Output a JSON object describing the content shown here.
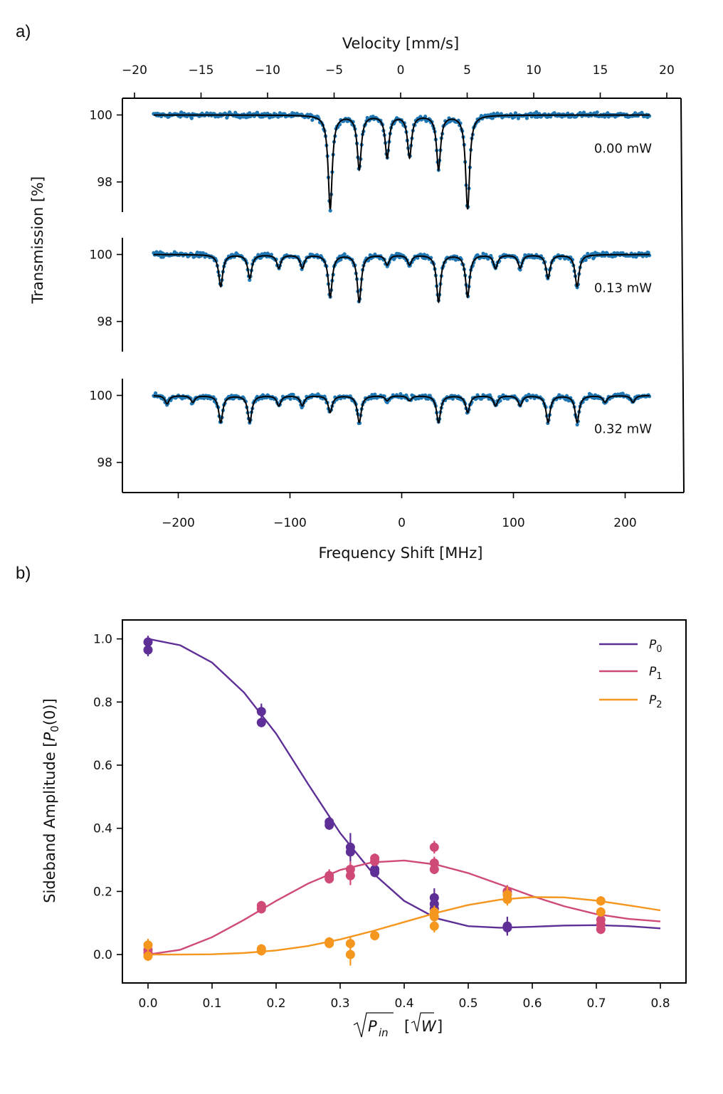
{
  "chart_data": [
    {
      "panel_label": "a)",
      "type": "scatter",
      "title": "",
      "top_axis": {
        "label": "Velocity [mm/s]",
        "ticks": [
          "−20",
          "−15",
          "−10",
          "−5",
          "0",
          "5",
          "10",
          "15",
          "20"
        ]
      },
      "x_axis": {
        "label": "Frequency Shift [MHz]",
        "ticks": [
          "−200",
          "−100",
          "0",
          "100",
          "200"
        ],
        "xlim": [
          -250,
          250
        ]
      },
      "y_axis": {
        "label": "Transmission [%]",
        "ticks": [
          "100",
          "98"
        ],
        "ylim": [
          97.1,
          100.5
        ]
      },
      "data_color": "#1f77b4",
      "fit_color": "#000000",
      "series": [
        {
          "name": "0.00 mW",
          "dips": [
            {
              "freq": -64,
              "depth": 2.8
            },
            {
              "freq": -38,
              "depth": 1.6
            },
            {
              "freq": -13,
              "depth": 1.25
            },
            {
              "freq": 7,
              "depth": 1.25
            },
            {
              "freq": 33,
              "depth": 1.6
            },
            {
              "freq": 59,
              "depth": 2.8
            }
          ]
        },
        {
          "name": "0.13 mW",
          "dips": [
            {
              "freq": -162,
              "depth": 0.95
            },
            {
              "freq": -136,
              "depth": 0.7
            },
            {
              "freq": -110,
              "depth": 0.4
            },
            {
              "freq": -89,
              "depth": 0.4
            },
            {
              "freq": -64,
              "depth": 1.25
            },
            {
              "freq": -38,
              "depth": 1.4
            },
            {
              "freq": -13,
              "depth": 0.3
            },
            {
              "freq": 7,
              "depth": 0.3
            },
            {
              "freq": 33,
              "depth": 1.4
            },
            {
              "freq": 59,
              "depth": 1.25
            },
            {
              "freq": 84,
              "depth": 0.4
            },
            {
              "freq": 106,
              "depth": 0.4
            },
            {
              "freq": 131,
              "depth": 0.7
            },
            {
              "freq": 157,
              "depth": 0.95
            }
          ]
        },
        {
          "name": "0.32 mW",
          "dips": [
            {
              "freq": -210,
              "depth": 0.25
            },
            {
              "freq": -187,
              "depth": 0.2
            },
            {
              "freq": -162,
              "depth": 0.8
            },
            {
              "freq": -136,
              "depth": 0.8
            },
            {
              "freq": -110,
              "depth": 0.3
            },
            {
              "freq": -89,
              "depth": 0.3
            },
            {
              "freq": -64,
              "depth": 0.5
            },
            {
              "freq": -38,
              "depth": 0.8
            },
            {
              "freq": -13,
              "depth": 0.15
            },
            {
              "freq": 7,
              "depth": 0.15
            },
            {
              "freq": 33,
              "depth": 0.8
            },
            {
              "freq": 59,
              "depth": 0.5
            },
            {
              "freq": 84,
              "depth": 0.3
            },
            {
              "freq": 106,
              "depth": 0.3
            },
            {
              "freq": 131,
              "depth": 0.8
            },
            {
              "freq": 157,
              "depth": 0.8
            },
            {
              "freq": 182,
              "depth": 0.2
            },
            {
              "freq": 207,
              "depth": 0.2
            }
          ]
        }
      ]
    },
    {
      "panel_label": "b)",
      "type": "scatter",
      "title": "",
      "xlabel": "√P_in [√W]",
      "ylabel": "Sideband Amplitude [P0(0)]",
      "xlim": [
        -0.04,
        0.84
      ],
      "ylim": [
        -0.09,
        1.06
      ],
      "x_ticks": [
        "0.0",
        "0.1",
        "0.2",
        "0.3",
        "0.4",
        "0.5",
        "0.6",
        "0.7",
        "0.8"
      ],
      "y_ticks": [
        "0.0",
        "0.2",
        "0.4",
        "0.6",
        "0.8",
        "1.0"
      ],
      "legend": {
        "position": "top-right",
        "entries": [
          "P0",
          "P1",
          "P2"
        ]
      },
      "series": [
        {
          "name": "P0",
          "color": "#5e2f96",
          "points": [
            {
              "x": 0.0,
              "y": 0.99,
              "err": 0.02
            },
            {
              "x": 0.0,
              "y": 0.965,
              "err": 0.02
            },
            {
              "x": 0.177,
              "y": 0.77,
              "err": 0.025
            },
            {
              "x": 0.177,
              "y": 0.735,
              "err": 0.015
            },
            {
              "x": 0.283,
              "y": 0.42,
              "err": 0.02
            },
            {
              "x": 0.283,
              "y": 0.41,
              "err": 0.015
            },
            {
              "x": 0.316,
              "y": 0.34,
              "err": 0.045
            },
            {
              "x": 0.316,
              "y": 0.325,
              "err": 0.02
            },
            {
              "x": 0.354,
              "y": 0.27,
              "err": 0.02
            },
            {
              "x": 0.354,
              "y": 0.26,
              "err": 0.015
            },
            {
              "x": 0.447,
              "y": 0.18,
              "err": 0.03
            },
            {
              "x": 0.447,
              "y": 0.16,
              "err": 0.03
            },
            {
              "x": 0.447,
              "y": 0.145,
              "err": 0.02
            },
            {
              "x": 0.561,
              "y": 0.09,
              "err": 0.03
            },
            {
              "x": 0.561,
              "y": 0.085,
              "err": 0.02
            }
          ],
          "fit": [
            {
              "x": 0.0,
              "y": 1.0
            },
            {
              "x": 0.05,
              "y": 0.98
            },
            {
              "x": 0.1,
              "y": 0.925
            },
            {
              "x": 0.15,
              "y": 0.83
            },
            {
              "x": 0.2,
              "y": 0.7
            },
            {
              "x": 0.25,
              "y": 0.54
            },
            {
              "x": 0.3,
              "y": 0.385
            },
            {
              "x": 0.35,
              "y": 0.26
            },
            {
              "x": 0.4,
              "y": 0.17
            },
            {
              "x": 0.45,
              "y": 0.115
            },
            {
              "x": 0.5,
              "y": 0.09
            },
            {
              "x": 0.55,
              "y": 0.085
            },
            {
              "x": 0.6,
              "y": 0.088
            },
            {
              "x": 0.65,
              "y": 0.092
            },
            {
              "x": 0.7,
              "y": 0.093
            },
            {
              "x": 0.75,
              "y": 0.09
            },
            {
              "x": 0.8,
              "y": 0.083
            }
          ]
        },
        {
          "name": "P1",
          "color": "#d04a78",
          "points": [
            {
              "x": 0.0,
              "y": 0.015,
              "err": 0.02
            },
            {
              "x": 0.0,
              "y": 0.005,
              "err": 0.015
            },
            {
              "x": 0.177,
              "y": 0.155,
              "err": 0.015
            },
            {
              "x": 0.177,
              "y": 0.145,
              "err": 0.015
            },
            {
              "x": 0.283,
              "y": 0.25,
              "err": 0.02
            },
            {
              "x": 0.283,
              "y": 0.24,
              "err": 0.015
            },
            {
              "x": 0.316,
              "y": 0.27,
              "err": 0.025
            },
            {
              "x": 0.316,
              "y": 0.25,
              "err": 0.03
            },
            {
              "x": 0.354,
              "y": 0.305,
              "err": 0.015
            },
            {
              "x": 0.354,
              "y": 0.295,
              "err": 0.015
            },
            {
              "x": 0.447,
              "y": 0.34,
              "err": 0.02
            },
            {
              "x": 0.447,
              "y": 0.29,
              "err": 0.02
            },
            {
              "x": 0.447,
              "y": 0.27,
              "err": 0.015
            },
            {
              "x": 0.561,
              "y": 0.2,
              "err": 0.02
            },
            {
              "x": 0.561,
              "y": 0.19,
              "err": 0.02
            },
            {
              "x": 0.707,
              "y": 0.11,
              "err": 0.015
            },
            {
              "x": 0.707,
              "y": 0.095,
              "err": 0.015
            },
            {
              "x": 0.707,
              "y": 0.08,
              "err": 0.015
            }
          ],
          "fit": [
            {
              "x": 0.0,
              "y": 0.0
            },
            {
              "x": 0.05,
              "y": 0.015
            },
            {
              "x": 0.1,
              "y": 0.055
            },
            {
              "x": 0.15,
              "y": 0.11
            },
            {
              "x": 0.2,
              "y": 0.17
            },
            {
              "x": 0.25,
              "y": 0.225
            },
            {
              "x": 0.3,
              "y": 0.268
            },
            {
              "x": 0.35,
              "y": 0.292
            },
            {
              "x": 0.4,
              "y": 0.298
            },
            {
              "x": 0.45,
              "y": 0.285
            },
            {
              "x": 0.5,
              "y": 0.258
            },
            {
              "x": 0.55,
              "y": 0.222
            },
            {
              "x": 0.6,
              "y": 0.185
            },
            {
              "x": 0.65,
              "y": 0.153
            },
            {
              "x": 0.7,
              "y": 0.128
            },
            {
              "x": 0.75,
              "y": 0.113
            },
            {
              "x": 0.8,
              "y": 0.105
            }
          ]
        },
        {
          "name": "P2",
          "color": "#f5961e",
          "points": [
            {
              "x": 0.0,
              "y": 0.03,
              "err": 0.02
            },
            {
              "x": 0.0,
              "y": -0.005,
              "err": 0.015
            },
            {
              "x": 0.177,
              "y": 0.018,
              "err": 0.015
            },
            {
              "x": 0.177,
              "y": 0.012,
              "err": 0.015
            },
            {
              "x": 0.283,
              "y": 0.04,
              "err": 0.015
            },
            {
              "x": 0.283,
              "y": 0.035,
              "err": 0.015
            },
            {
              "x": 0.316,
              "y": 0.035,
              "err": 0.02
            },
            {
              "x": 0.316,
              "y": 0.0,
              "err": 0.035
            },
            {
              "x": 0.354,
              "y": 0.06,
              "err": 0.015
            },
            {
              "x": 0.447,
              "y": 0.135,
              "err": 0.02
            },
            {
              "x": 0.447,
              "y": 0.12,
              "err": 0.015
            },
            {
              "x": 0.447,
              "y": 0.09,
              "err": 0.02
            },
            {
              "x": 0.561,
              "y": 0.19,
              "err": 0.025
            },
            {
              "x": 0.561,
              "y": 0.175,
              "err": 0.02
            },
            {
              "x": 0.707,
              "y": 0.17,
              "err": 0.015
            },
            {
              "x": 0.707,
              "y": 0.135,
              "err": 0.015
            }
          ],
          "fit": [
            {
              "x": 0.0,
              "y": 0.0
            },
            {
              "x": 0.05,
              "y": 0.0
            },
            {
              "x": 0.1,
              "y": 0.001
            },
            {
              "x": 0.15,
              "y": 0.005
            },
            {
              "x": 0.2,
              "y": 0.013
            },
            {
              "x": 0.25,
              "y": 0.027
            },
            {
              "x": 0.3,
              "y": 0.048
            },
            {
              "x": 0.35,
              "y": 0.074
            },
            {
              "x": 0.4,
              "y": 0.103
            },
            {
              "x": 0.45,
              "y": 0.132
            },
            {
              "x": 0.5,
              "y": 0.157
            },
            {
              "x": 0.55,
              "y": 0.174
            },
            {
              "x": 0.6,
              "y": 0.182
            },
            {
              "x": 0.65,
              "y": 0.181
            },
            {
              "x": 0.7,
              "y": 0.171
            },
            {
              "x": 0.75,
              "y": 0.156
            },
            {
              "x": 0.8,
              "y": 0.14
            }
          ]
        }
      ]
    }
  ]
}
